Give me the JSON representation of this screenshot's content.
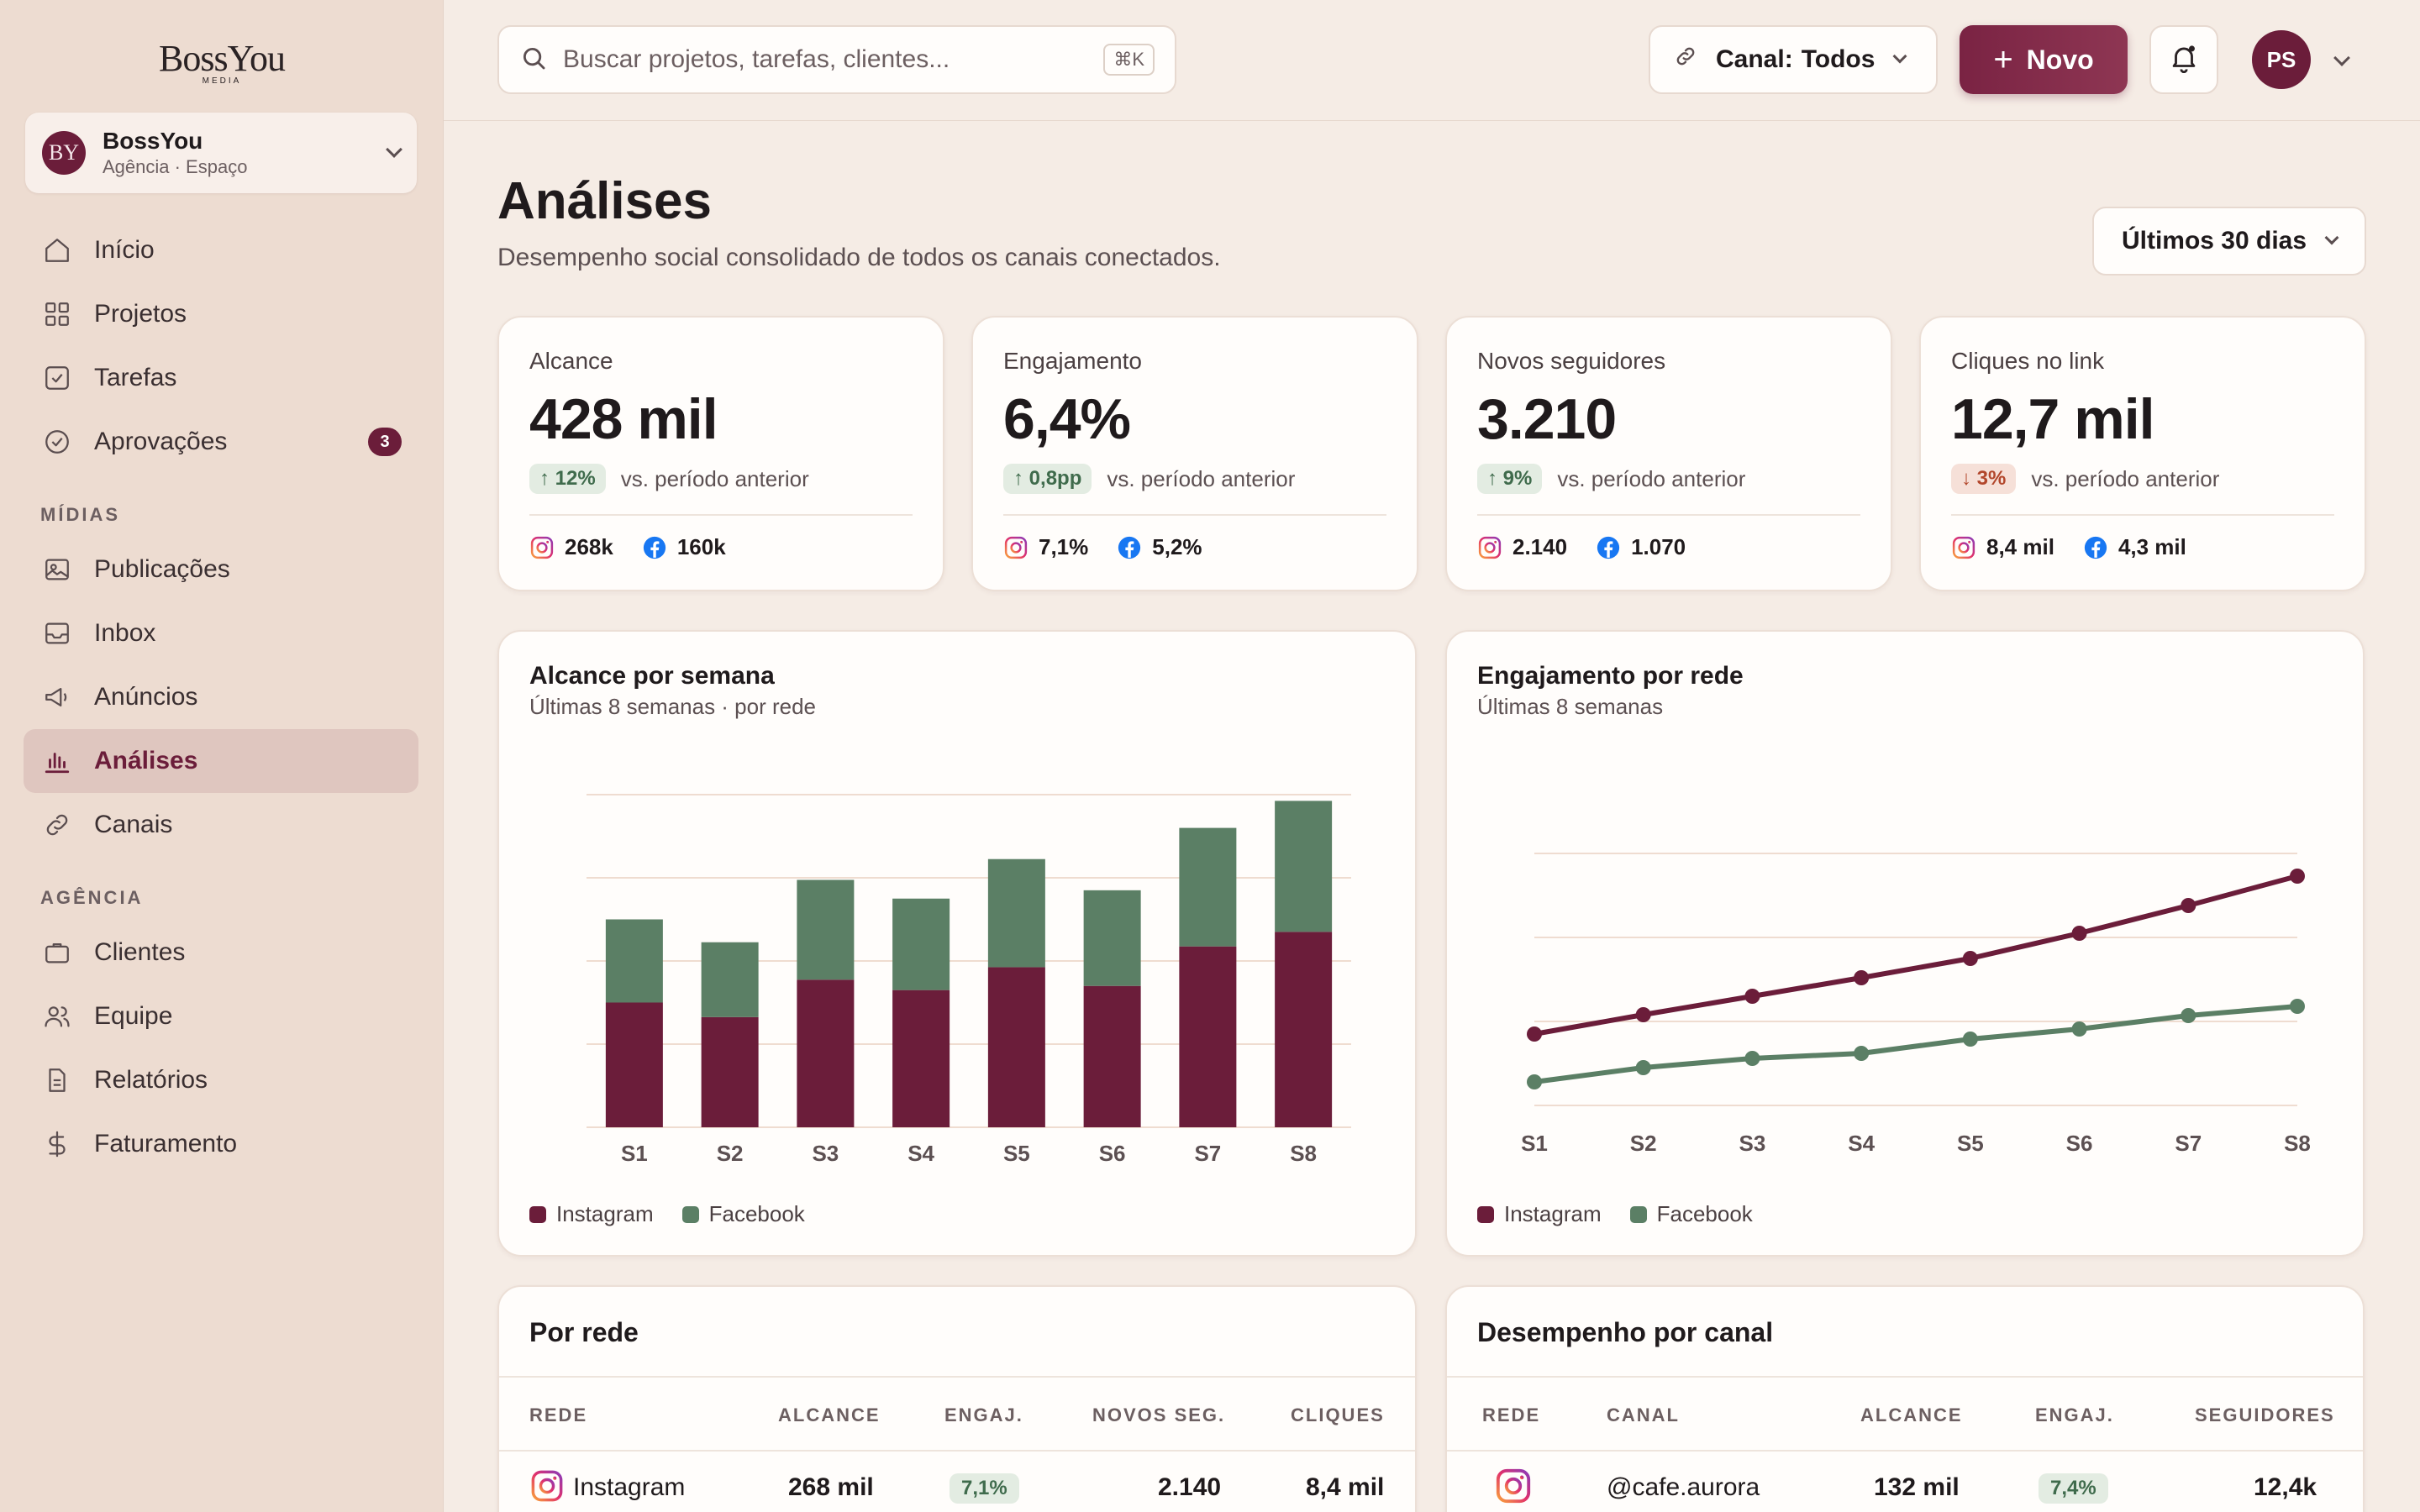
{
  "brand": {
    "wordmark": "BossYou",
    "sub": "MEDIA"
  },
  "workspace": {
    "initials": "BY",
    "name": "BossYou",
    "subtitle": "Agência · Espaço"
  },
  "nav": {
    "main": [
      {
        "label": "Início",
        "icon": "home-icon"
      },
      {
        "label": "Projetos",
        "icon": "grid-icon"
      },
      {
        "label": "Tarefas",
        "icon": "checkbox-icon"
      },
      {
        "label": "Aprovações",
        "icon": "check-circle-icon",
        "badge": "3"
      }
    ],
    "media_section": "MÍDIAS",
    "media": [
      {
        "label": "Publicações",
        "icon": "image-icon"
      },
      {
        "label": "Inbox",
        "icon": "inbox-icon"
      },
      {
        "label": "Anúncios",
        "icon": "megaphone-icon"
      },
      {
        "label": "Análises",
        "icon": "bar-chart-icon",
        "active": true
      },
      {
        "label": "Canais",
        "icon": "link-icon"
      }
    ],
    "agency_section": "AGÊNCIA",
    "agency": [
      {
        "label": "Clientes",
        "icon": "briefcase-icon"
      },
      {
        "label": "Equipe",
        "icon": "users-icon"
      },
      {
        "label": "Relatórios",
        "icon": "file-icon"
      },
      {
        "label": "Faturamento",
        "icon": "dollar-icon"
      }
    ]
  },
  "topbar": {
    "search_placeholder": "Buscar projetos, tarefas, clientes...",
    "search_shortcut": "⌘K",
    "canal_label": "Canal:",
    "canal_value": "Todos",
    "new_button": "Novo",
    "user_initials": "PS"
  },
  "page": {
    "title": "Análises",
    "subtitle": "Desempenho social consolidado de todos os canais conectados.",
    "range": "Últimos 30 dias"
  },
  "kpis": [
    {
      "label": "Alcance",
      "value": "428 mil",
      "delta": "12%",
      "direction": "up",
      "compare": "vs. período anterior",
      "instagram": "268k",
      "facebook": "160k"
    },
    {
      "label": "Engajamento",
      "value": "6,4%",
      "delta": "0,8pp",
      "direction": "up",
      "compare": "vs. período anterior",
      "instagram": "7,1%",
      "facebook": "5,2%"
    },
    {
      "label": "Novos seguidores",
      "value": "3.210",
      "delta": "9%",
      "direction": "up",
      "compare": "vs. período anterior",
      "instagram": "2.140",
      "facebook": "1.070"
    },
    {
      "label": "Cliques no link",
      "value": "12,7 mil",
      "delta": "3%",
      "direction": "down",
      "compare": "vs. período anterior",
      "instagram": "8,4 mil",
      "facebook": "4,3 mil"
    }
  ],
  "colors": {
    "instagram": "#6b1d3a",
    "facebook": "#5b7f65",
    "accent": "#6b1d3a",
    "grid": "#efdcd0"
  },
  "chart_data": [
    {
      "type": "bar",
      "stacked": true,
      "title": "Alcance por semana",
      "subtitle": "Últimas 8 semanas · por rede",
      "categories": [
        "S1",
        "S2",
        "S3",
        "S4",
        "S5",
        "S6",
        "S7",
        "S8"
      ],
      "ylim": [
        0,
        80
      ],
      "grid": true,
      "legend": "bottom-left",
      "series": [
        {
          "name": "Instagram",
          "values": [
            30,
            26.5,
            35.5,
            33,
            38.5,
            34,
            43.5,
            47
          ]
        },
        {
          "name": "Facebook",
          "values": [
            20,
            18,
            24,
            22,
            26,
            23,
            28.5,
            31.5
          ]
        }
      ]
    },
    {
      "type": "line",
      "title": "Engajamento por rede",
      "subtitle": "Últimas 8 semanas",
      "categories": [
        "S1",
        "S2",
        "S3",
        "S4",
        "S5",
        "S6",
        "S7",
        "S8"
      ],
      "ylim": [
        0,
        3
      ],
      "grid": true,
      "legend": "bottom-left",
      "series": [
        {
          "name": "Instagram",
          "values": [
            0.85,
            1.08,
            1.3,
            1.52,
            1.75,
            2.05,
            2.38,
            2.73
          ]
        },
        {
          "name": "Facebook",
          "values": [
            0.28,
            0.45,
            0.56,
            0.62,
            0.79,
            0.91,
            1.07,
            1.18
          ]
        }
      ]
    }
  ],
  "por_rede": {
    "title": "Por rede",
    "headers": [
      "REDE",
      "ALCANCE",
      "ENGAJ.",
      "NOVOS SEG.",
      "CLIQUES"
    ],
    "rows": [
      {
        "rede": "Instagram",
        "alcance": "268 mil",
        "engaj": "7,1%",
        "novos": "2.140",
        "cliques": "8,4 mil"
      }
    ]
  },
  "por_canal": {
    "title": "Desempenho por canal",
    "headers": [
      "REDE",
      "CANAL",
      "ALCANCE",
      "ENGAJ.",
      "SEGUIDORES"
    ],
    "rows": [
      {
        "canal": "@cafe.aurora",
        "alcance": "132 mil",
        "engaj": "7,4%",
        "seguidores": "12,4k"
      }
    ]
  }
}
